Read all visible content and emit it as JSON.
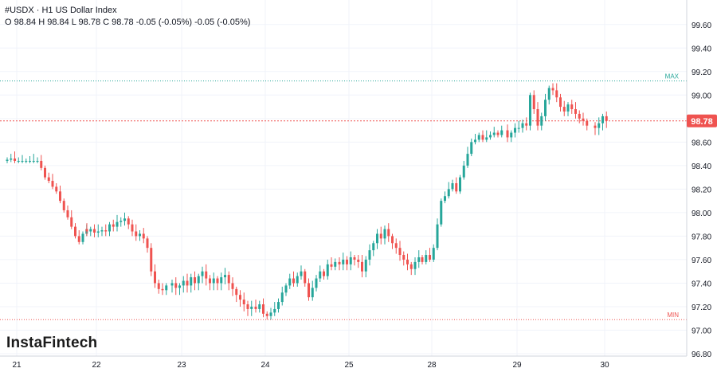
{
  "header": {
    "symbol": "#USDX",
    "separator": "·",
    "interval_name": "H1 US Dollar Index",
    "ohlc_line": "O 98.84 H 98.84 L 98.78 C 98.78 -0.05 (-0.05%) -0.05 (-0.05%)"
  },
  "branding": {
    "logo_text": "InstaFintech"
  },
  "colors": {
    "up": "#26a69a",
    "down": "#ef5350",
    "max_line": "#26a69a",
    "min_line": "#ef5350",
    "current_price": "#ef5350",
    "grid": "#f0f3fa",
    "axis_text": "#131722"
  },
  "chart_data": {
    "type": "candlestick",
    "x_tick_labels": [
      "21",
      "22",
      "23",
      "24",
      "25",
      "28",
      "29",
      "30"
    ],
    "ylim": [
      96.8,
      99.7
    ],
    "y_tick_values": [
      99.6,
      99.4,
      99.2,
      99.0,
      98.8,
      98.6,
      98.4,
      98.2,
      98.0,
      97.8,
      97.6,
      97.4,
      97.2,
      97.0,
      96.8
    ],
    "y_tick_labels": [
      "99.60",
      "99.40",
      "99.20",
      "99.00",
      "98.80",
      "98.60",
      "98.40",
      "98.20",
      "98.00",
      "97.80",
      "97.60",
      "97.40",
      "97.20",
      "97.00",
      "96.80"
    ],
    "grid": true,
    "reference_lines": [
      {
        "label": "MAX",
        "value": 99.12
      },
      {
        "label": "MIN",
        "value": 97.09
      }
    ],
    "current_price": {
      "label": "98.78",
      "value": 98.78
    },
    "days": [
      {
        "label": "21",
        "closes": [
          98.45,
          98.46,
          98.44,
          98.44,
          98.44,
          98.44,
          98.44,
          98.44,
          98.44,
          98.38,
          98.3,
          98.27,
          98.22,
          98.18,
          98.1,
          98.02,
          97.96,
          97.88,
          97.8,
          97.75,
          97.82,
          97.86
        ]
      },
      {
        "label": "22",
        "closes": [
          97.84,
          97.86,
          97.83,
          97.84,
          97.85,
          97.84,
          97.9,
          97.88,
          97.92,
          97.93,
          97.95,
          97.9,
          97.84,
          97.8,
          97.82,
          97.78,
          97.7,
          97.5,
          97.4,
          97.35,
          97.34,
          97.38
        ]
      },
      {
        "label": "23",
        "closes": [
          97.4,
          97.36,
          97.38,
          97.42,
          97.38,
          97.45,
          97.4,
          97.46,
          97.5,
          97.44,
          97.4,
          97.44,
          97.4,
          97.45,
          97.47,
          97.4,
          97.35,
          97.3,
          97.26,
          97.22,
          97.18,
          97.2
        ]
      },
      {
        "label": "24",
        "closes": [
          97.18,
          97.22,
          97.14,
          97.12,
          97.15,
          97.18,
          97.24,
          97.32,
          97.38,
          97.44,
          97.4,
          97.46,
          97.5,
          97.4,
          97.28,
          97.36,
          97.44,
          97.5,
          97.46,
          97.56,
          97.54,
          97.58
        ]
      },
      {
        "label": "25",
        "closes": [
          97.56,
          97.6,
          97.56,
          97.62,
          97.6,
          97.58,
          97.5,
          97.6,
          97.68,
          97.74,
          97.82,
          97.78,
          97.86,
          97.8,
          97.74,
          97.7,
          97.64,
          97.6,
          97.56,
          97.52,
          97.58,
          97.62
        ]
      },
      {
        "label": "28",
        "closes": [
          97.58,
          97.64,
          97.6,
          97.7,
          97.9,
          98.1,
          98.14,
          98.2,
          98.25,
          98.18,
          98.3,
          98.4,
          98.5,
          98.6,
          98.62,
          98.66,
          98.62,
          98.64,
          98.66,
          98.68,
          98.66,
          98.7
        ]
      },
      {
        "label": "29",
        "closes": [
          98.64,
          98.68,
          98.72,
          98.72,
          98.76,
          98.74,
          99.0,
          98.88,
          98.74,
          98.82,
          98.96,
          99.06,
          99.04,
          98.98,
          98.9,
          98.86,
          98.92,
          98.88,
          98.84,
          98.8,
          98.78,
          98.74
        ]
      },
      {
        "label": "30",
        "closes": [
          98.72,
          98.76,
          98.82,
          98.78
        ]
      }
    ]
  }
}
